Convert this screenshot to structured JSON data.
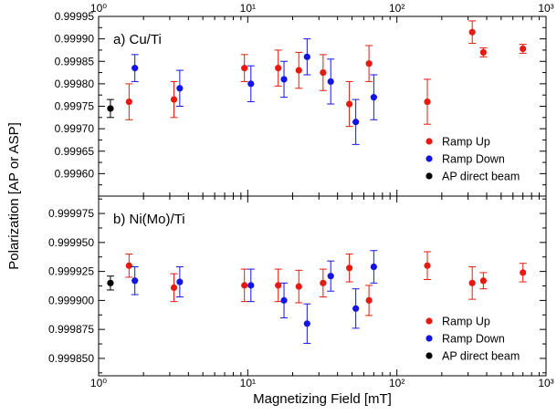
{
  "chart_data": {
    "type": "scatter",
    "xlabel": "Magnetizing Field [mT]",
    "ylabel": "Polarization [AP or ASP]",
    "x_scale": "log",
    "xlim": [
      1,
      1000
    ],
    "x_tick_labels": [
      "10⁰",
      "10¹",
      "10²",
      "10³"
    ],
    "grid": false,
    "legend_placement": "bottom-right",
    "colors": {
      "Ramp Up": "#e8190f",
      "Ramp Down": "#1414e6",
      "AP direct beam": "#000000"
    },
    "panels": [
      {
        "label": "a) Cu/Ti",
        "ylim": [
          0.99955,
          0.99995
        ],
        "y_ticks": [
          "0.99960",
          "0.99965",
          "0.99970",
          "0.99975",
          "0.99980",
          "0.99985",
          "0.99990",
          "0.99995"
        ],
        "legend": [
          "Ramp Up",
          "Ramp Down",
          "AP direct beam"
        ],
        "series": [
          {
            "name": "Ramp Up",
            "points": [
              {
                "x": 1.6,
                "y": 0.99976,
                "err": 4e-05
              },
              {
                "x": 3.2,
                "y": 0.999765,
                "err": 4e-05
              },
              {
                "x": 9.5,
                "y": 0.999835,
                "err": 3e-05
              },
              {
                "x": 16,
                "y": 0.999835,
                "err": 4e-05
              },
              {
                "x": 22,
                "y": 0.99983,
                "err": 4e-05
              },
              {
                "x": 32,
                "y": 0.999825,
                "err": 4e-05
              },
              {
                "x": 48,
                "y": 0.999755,
                "err": 5e-05
              },
              {
                "x": 65,
                "y": 0.999845,
                "err": 4e-05
              },
              {
                "x": 160,
                "y": 0.99976,
                "err": 5e-05
              },
              {
                "x": 320,
                "y": 0.999915,
                "err": 2.5e-05
              },
              {
                "x": 380,
                "y": 0.99987,
                "err": 1e-05
              },
              {
                "x": 700,
                "y": 0.999878,
                "err": 1e-05
              }
            ]
          },
          {
            "name": "Ramp Down",
            "points": [
              {
                "x": 1.75,
                "y": 0.999835,
                "err": 3e-05
              },
              {
                "x": 3.5,
                "y": 0.99979,
                "err": 4e-05
              },
              {
                "x": 10.5,
                "y": 0.9998,
                "err": 4e-05
              },
              {
                "x": 17.5,
                "y": 0.99981,
                "err": 4e-05
              },
              {
                "x": 25,
                "y": 0.99986,
                "err": 4e-05
              },
              {
                "x": 36,
                "y": 0.999805,
                "err": 5e-05
              },
              {
                "x": 53,
                "y": 0.999715,
                "err": 5e-05
              },
              {
                "x": 70,
                "y": 0.99977,
                "err": 5e-05
              }
            ]
          },
          {
            "name": "AP direct beam",
            "points": [
              {
                "x": 1.2,
                "y": 0.999745,
                "err": 2e-05
              }
            ]
          }
        ]
      },
      {
        "label": "b) Ni(Mo)/Ti",
        "ylim": [
          0.999835,
          0.99999
        ],
        "y_ticks": [
          "0.999850",
          "0.999875",
          "0.999900",
          "0.999925",
          "0.999950",
          "0.999975"
        ],
        "legend": [
          "Ramp Up",
          "Ramp Down",
          "AP direct beam"
        ],
        "series": [
          {
            "name": "Ramp Up",
            "points": [
              {
                "x": 1.6,
                "y": 0.99993,
                "err": 1e-05
              },
              {
                "x": 3.2,
                "y": 0.999911,
                "err": 1.2e-05
              },
              {
                "x": 9.5,
                "y": 0.999913,
                "err": 1.4e-05
              },
              {
                "x": 16,
                "y": 0.999913,
                "err": 1.4e-05
              },
              {
                "x": 22,
                "y": 0.999912,
                "err": 1.4e-05
              },
              {
                "x": 32,
                "y": 0.999915,
                "err": 1.2e-05
              },
              {
                "x": 48,
                "y": 0.999928,
                "err": 1.2e-05
              },
              {
                "x": 65,
                "y": 0.9999,
                "err": 1.3e-05
              },
              {
                "x": 160,
                "y": 0.99993,
                "err": 1.2e-05
              },
              {
                "x": 320,
                "y": 0.999915,
                "err": 1.4e-05
              },
              {
                "x": 380,
                "y": 0.999917,
                "err": 7e-06
              },
              {
                "x": 700,
                "y": 0.999924,
                "err": 8e-06
              }
            ]
          },
          {
            "name": "Ramp Down",
            "points": [
              {
                "x": 1.75,
                "y": 0.999917,
                "err": 1.2e-05
              },
              {
                "x": 3.5,
                "y": 0.999916,
                "err": 1.3e-05
              },
              {
                "x": 10.5,
                "y": 0.999913,
                "err": 1.4e-05
              },
              {
                "x": 17.5,
                "y": 0.9999,
                "err": 1.5e-05
              },
              {
                "x": 25,
                "y": 0.99988,
                "err": 1.7e-05
              },
              {
                "x": 36,
                "y": 0.999921,
                "err": 1.3e-05
              },
              {
                "x": 53,
                "y": 0.999893,
                "err": 1.7e-05
              },
              {
                "x": 70,
                "y": 0.999929,
                "err": 1.4e-05
              }
            ]
          },
          {
            "name": "AP direct beam",
            "points": [
              {
                "x": 1.2,
                "y": 0.999915,
                "err": 6e-06
              }
            ]
          }
        ]
      }
    ]
  }
}
